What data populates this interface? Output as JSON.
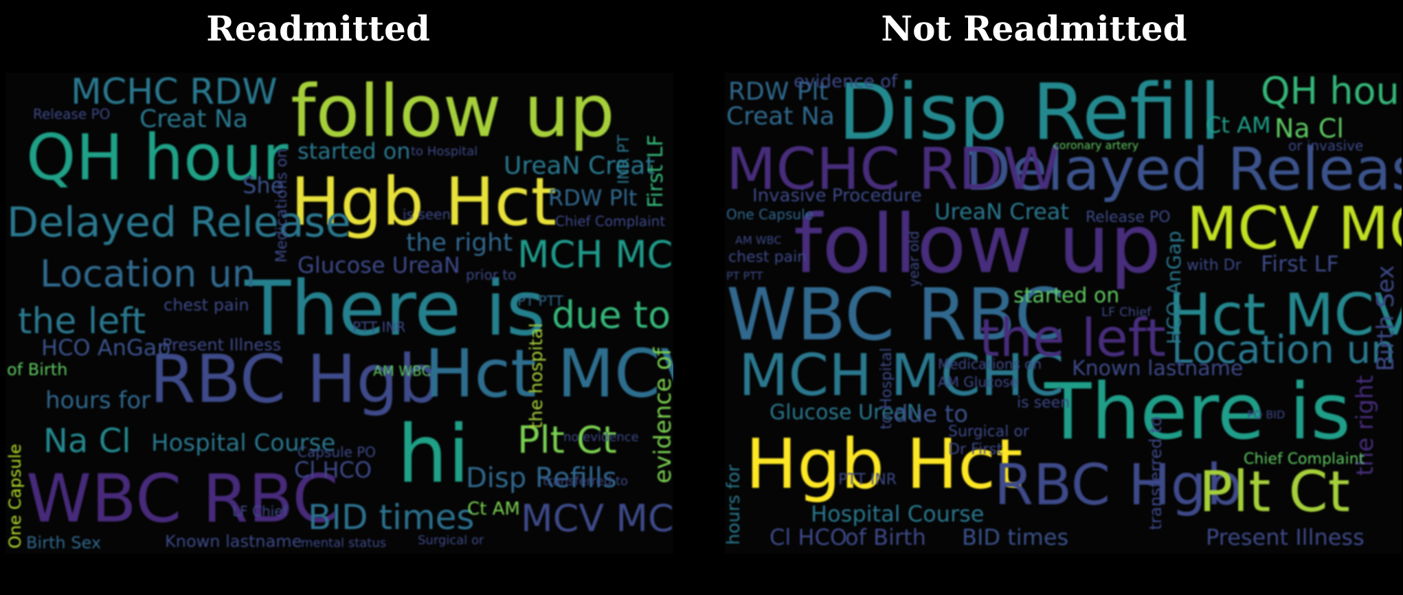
{
  "titles": {
    "left": "Readmitted",
    "right": "Not Readmitted"
  },
  "colors": {
    "background": "#000000",
    "title": "#ffffff",
    "palette": [
      "#440154",
      "#3b528b",
      "#21918c",
      "#5ec962",
      "#fde725"
    ]
  },
  "left_words": [
    "follow up",
    "QH hour",
    "Hgb Hct",
    "There is",
    "hi",
    "WBC RBC",
    "RBC Hgb",
    "Hct MCV",
    "Delayed Release",
    "Location un",
    "MCHC RDW",
    "MCH MCHC",
    "due to",
    "the left",
    "Plt Ct",
    "Na Cl",
    "MCV MCH",
    "BID times",
    "Disp Refills",
    "UreaN Creat",
    "Creat Na",
    "started on",
    "the right",
    "Glucose UreaN",
    "Hospital Course",
    "hours for",
    "HCO AnGap",
    "RDW Plt",
    "Cl HCO",
    "evidence of",
    "First LF",
    "chest pain",
    "Present Illness",
    "Known lastname",
    "Birth Sex",
    "One Capsule",
    "the hospital",
    "She",
    "of Birth",
    "Ct AM",
    "INR PT",
    "Medications on",
    "Capsule PO",
    "AM WBC",
    "PTT INR",
    "PT PTT",
    "mental status",
    "Surgical or",
    "LF Chief",
    "is seen",
    "Chief Complaint",
    "Release PO",
    "to Hospital",
    "prior to",
    "no evidence",
    "transferred to"
  ],
  "right_words": [
    "Disp Refill",
    "follow up",
    "Delayed Release",
    "MCV MCH",
    "QH hour",
    "MCHC RDW",
    "WBC RBC",
    "There is",
    "MCH MCHC",
    "Hct MCV",
    "Hgb Hct",
    "the left",
    "RBC Hgb",
    "Plt Ct",
    "Location un",
    "Na Cl",
    "Ct AM",
    "RDW Plt",
    "Creat Na",
    "UreaN Creat",
    "Invasive Procedure",
    "Birth Sex",
    "the right",
    "First LF",
    "Known lastname",
    "started on",
    "Glucose UreaN",
    "Hospital Course",
    "BID times",
    "Cl HCO",
    "of Birth",
    "Present Illness",
    "due to",
    "hours for",
    "Chief Complaint",
    "One Capsule",
    "evidence of",
    "HCO AnGap",
    "Medications on",
    "AM Glucose",
    "chest pain",
    "is seen",
    "PTT INR",
    "Surgical or",
    "Dr First",
    "Release PO",
    "to Hospital",
    "coronary artery",
    "or invasive",
    "with Dr",
    "LF Chief",
    "transferred to",
    "year old",
    "PO BID",
    "AM WBC",
    "PT PTT"
  ]
}
